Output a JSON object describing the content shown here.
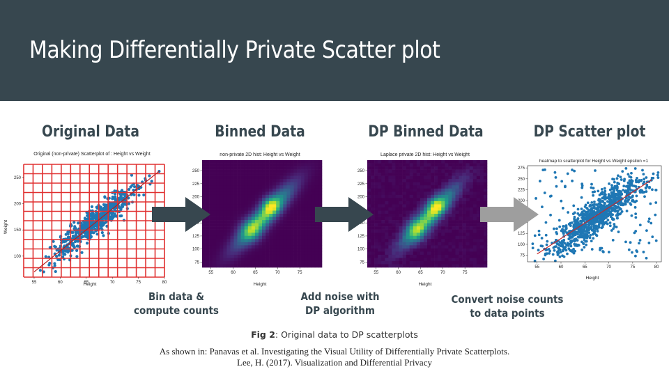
{
  "slide": {
    "title": "Making Differentially Private Scatter plot",
    "colors": {
      "header_bg": "#37474f",
      "arrow_dark": "#37474f",
      "arrow_light": "#9e9e9e",
      "grid_red": "#e03030",
      "point_blue": "#1f77b4"
    }
  },
  "steps": [
    {
      "title": "Original Data"
    },
    {
      "title": "Binned Data"
    },
    {
      "title": "DP Binned Data"
    },
    {
      "title": "DP Scatter plot"
    }
  ],
  "transitions": [
    {
      "label_line1": "Bin data &",
      "label_line2": "compute counts"
    },
    {
      "label_line1": "Add noise with",
      "label_line2": "DP algorithm"
    },
    {
      "label_line1": "Convert noise counts",
      "label_line2": "to data points"
    }
  ],
  "chart_data": [
    {
      "type": "scatter",
      "title": "Original (non-private) Scatterplot of : Height vs Weight",
      "xlabel": "Height",
      "ylabel": "Weight",
      "xlim": [
        53,
        80
      ],
      "ylim": [
        60,
        275
      ],
      "xticks": [
        "55",
        "60",
        "65",
        "70",
        "75",
        "80"
      ],
      "yticks": [
        "100",
        "150",
        "200",
        "250"
      ],
      "overlay": "red bin grid",
      "trend": {
        "x": [
          55,
          79
        ],
        "y": [
          70,
          262
        ]
      }
    },
    {
      "type": "heatmap",
      "title": "non-private 2D hist: Height vs Weight",
      "xlabel": "Height",
      "xlim": [
        53,
        80
      ],
      "ylim": [
        65,
        270
      ],
      "xticks": [
        "55",
        "60",
        "65",
        "70",
        "75"
      ],
      "yticks": [
        "75",
        "100",
        "125",
        "150",
        "175",
        "200",
        "225",
        "250"
      ]
    },
    {
      "type": "heatmap",
      "title": "Laplace private 2D hist: Height vs Weight",
      "xlabel": "Height",
      "xlim": [
        53,
        80
      ],
      "ylim": [
        65,
        270
      ],
      "xticks": [
        "55",
        "60",
        "65",
        "70",
        "75"
      ],
      "yticks": [
        "75",
        "100",
        "125",
        "150",
        "175",
        "200",
        "225",
        "250"
      ]
    },
    {
      "type": "scatter",
      "title": "heatmap to scatterplot for Height vs Weight epsilon =1",
      "xlabel": "Height",
      "xlim": [
        53,
        81
      ],
      "ylim": [
        60,
        280
      ],
      "xticks": [
        "55",
        "60",
        "65",
        "70",
        "75",
        "80"
      ],
      "yticks": [
        "75",
        "100",
        "125",
        "150",
        "175",
        "200",
        "225",
        "250",
        "275"
      ],
      "trend": {
        "x": [
          55,
          79
        ],
        "y": [
          78,
          248
        ]
      }
    }
  ],
  "figure": {
    "caption_label": "Fig 2",
    "caption_text": ": Original data to DP scatterplots",
    "source_line1": "As shown in: Panavas et al. Investigating the Visual Utility of Differentially Private Scatterplots.",
    "source_line2": "Lee, H. (2017). Visualization and Differential Privacy"
  }
}
